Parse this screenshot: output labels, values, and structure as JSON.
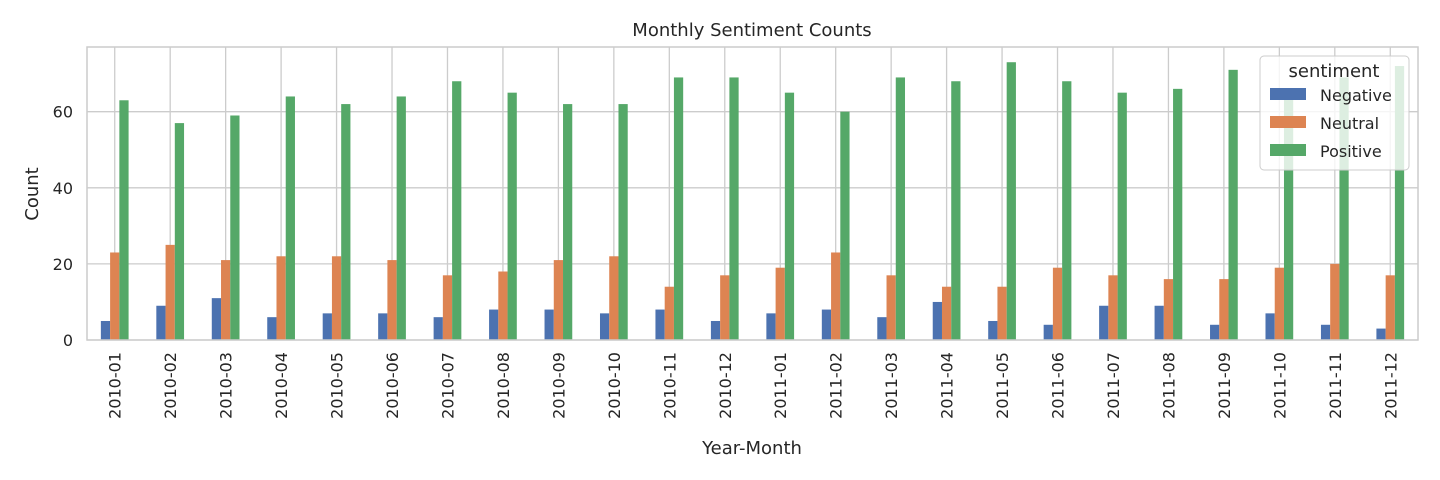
{
  "chart_data": {
    "type": "bar",
    "title": "Monthly Sentiment Counts",
    "xlabel": "Year-Month",
    "ylabel": "Count",
    "ylim": [
      0,
      77
    ],
    "yticks": [
      0,
      20,
      40,
      60
    ],
    "grid": true,
    "legend": {
      "title": "sentiment",
      "placement": "top-right"
    },
    "categories": [
      "2010-01",
      "2010-02",
      "2010-03",
      "2010-04",
      "2010-05",
      "2010-06",
      "2010-07",
      "2010-08",
      "2010-09",
      "2010-10",
      "2010-11",
      "2010-12",
      "2011-01",
      "2011-02",
      "2011-03",
      "2011-04",
      "2011-05",
      "2011-06",
      "2011-07",
      "2011-08",
      "2011-09",
      "2011-10",
      "2011-11",
      "2011-12"
    ],
    "series": [
      {
        "name": "Negative",
        "color": "#4c72b0",
        "values": [
          5,
          9,
          11,
          6,
          7,
          7,
          6,
          8,
          8,
          7,
          8,
          5,
          7,
          8,
          6,
          10,
          5,
          4,
          9,
          9,
          4,
          7,
          4,
          3
        ]
      },
      {
        "name": "Neutral",
        "color": "#dd8452",
        "values": [
          23,
          25,
          21,
          22,
          22,
          21,
          17,
          18,
          21,
          22,
          14,
          17,
          19,
          23,
          17,
          14,
          14,
          19,
          17,
          16,
          16,
          19,
          20,
          17
        ]
      },
      {
        "name": "Positive",
        "color": "#55a868",
        "values": [
          63,
          57,
          59,
          64,
          62,
          64,
          68,
          65,
          62,
          62,
          69,
          69,
          65,
          60,
          69,
          68,
          73,
          68,
          65,
          66,
          71,
          65,
          69,
          72
        ]
      }
    ]
  }
}
